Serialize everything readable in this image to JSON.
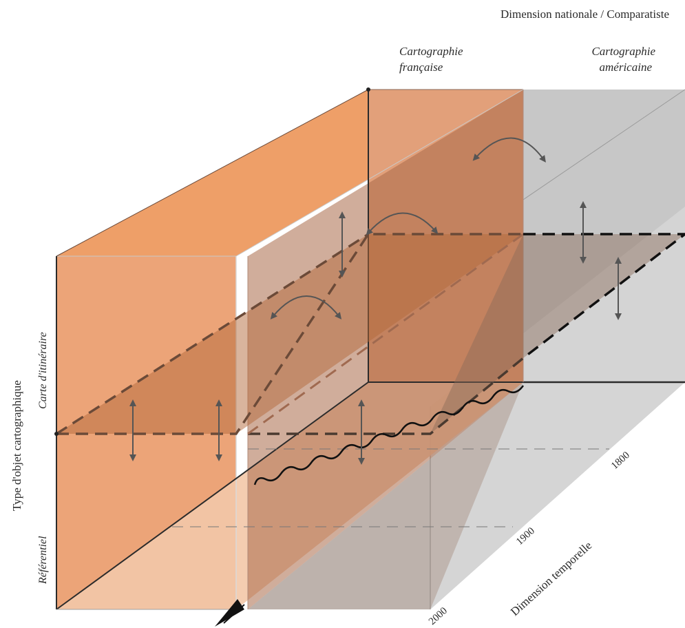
{
  "axes": {
    "national": "Dimension nationale / Comparatiste",
    "object_type": "Type d'objet cartographique",
    "temporal": "Dimension temporelle"
  },
  "columns": {
    "french": [
      "Cartographie",
      "française"
    ],
    "american": [
      "Cartographie",
      "américaine"
    ]
  },
  "object_types": {
    "itinerary": "Carte d'itinéraire",
    "reference": "Référentiel"
  },
  "years": [
    "1800",
    "1900",
    "2000"
  ],
  "colors": {
    "orange_fill": "#eba574",
    "orange_light": "#f3c6a6",
    "brown_overlay": "#a56a4a",
    "grey_fill": "#c9c9c9",
    "line_dark": "#2b2b2b"
  }
}
